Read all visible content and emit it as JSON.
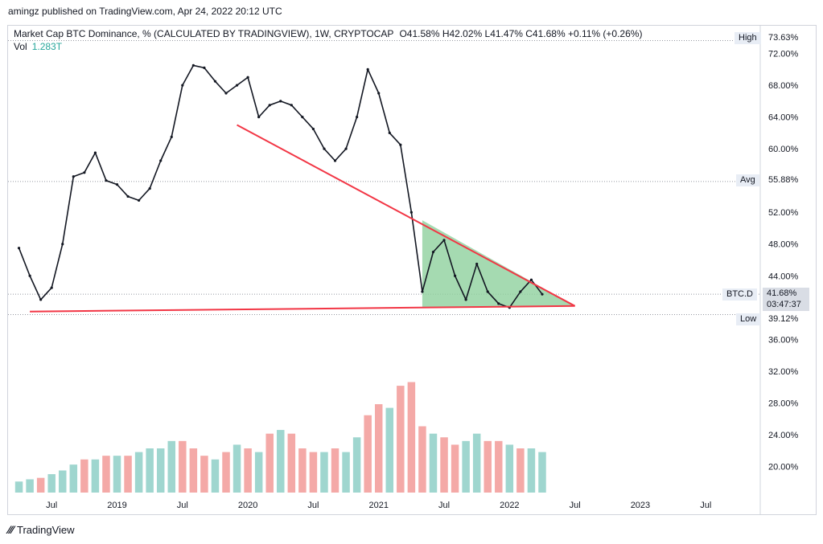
{
  "header": {
    "publisher": "amingz published on TradingView.com, Apr 24, 2022 20:12 UTC"
  },
  "legend": {
    "title": "Market Cap BTC Dominance, % (CALCULATED BY TRADINGVIEW), 1W, CRYPTOCAP",
    "ohlc": "O41.58%  H42.02%  L41.47%  C41.68%  +0.11% (+0.26%)",
    "vol_label": "Vol",
    "vol_value": "1.283T"
  },
  "markers": {
    "high_label": "High",
    "high_value": "73.63%",
    "avg_label": "Avg",
    "avg_value": "55.88%",
    "low_label": "Low",
    "low_value": "39.12%",
    "symbol": "BTC.D",
    "last_value": "41.68%",
    "countdown": "03:47:37"
  },
  "footer": {
    "brand": "TradingView"
  },
  "colors": {
    "up": "#26a69a",
    "down": "#ef5350",
    "trend": "#f23645",
    "triangle_fill": "#8fd19e",
    "candle": "#131722"
  },
  "chart_data": {
    "type": "line",
    "title": "Market Cap BTC Dominance, % (CALCULATED BY TRADINGVIEW), 1W, CRYPTOCAP",
    "ylabel": "%",
    "ylim": [
      16.5,
      75.5
    ],
    "y_ticks": [
      "72.00%",
      "68.00%",
      "64.00%",
      "60.00%",
      "52.00%",
      "48.00%",
      "44.00%",
      "36.00%",
      "32.00%",
      "28.00%",
      "24.00%",
      "20.00%"
    ],
    "x_ticks": [
      "Jul",
      "2019",
      "Jul",
      "2020",
      "Jul",
      "2021",
      "Jul",
      "2022",
      "Jul",
      "2023",
      "Jul"
    ],
    "series": [
      {
        "name": "BTC.D",
        "x": [
          "2018-04",
          "2018-05",
          "2018-06",
          "2018-07",
          "2018-08",
          "2018-09",
          "2018-10",
          "2018-11",
          "2018-12",
          "2019-01",
          "2019-02",
          "2019-03",
          "2019-04",
          "2019-05",
          "2019-06",
          "2019-07",
          "2019-08",
          "2019-09",
          "2019-10",
          "2019-11",
          "2019-12",
          "2020-01",
          "2020-02",
          "2020-03",
          "2020-04",
          "2020-05",
          "2020-06",
          "2020-07",
          "2020-08",
          "2020-09",
          "2020-10",
          "2020-11",
          "2020-12",
          "2021-01",
          "2021-02",
          "2021-03",
          "2021-04",
          "2021-05",
          "2021-06",
          "2021-07",
          "2021-08",
          "2021-09",
          "2021-10",
          "2021-11",
          "2021-12",
          "2022-01",
          "2022-02",
          "2022-03",
          "2022-04"
        ],
        "values": [
          47.5,
          44.0,
          41.0,
          42.5,
          48.0,
          56.5,
          57.0,
          59.5,
          56.0,
          55.5,
          54.0,
          53.5,
          55.0,
          58.5,
          61.5,
          68.0,
          70.5,
          70.2,
          68.5,
          67.0,
          68.0,
          69.0,
          64.0,
          65.5,
          66.0,
          65.5,
          64.0,
          62.5,
          60.0,
          58.5,
          60.0,
          64.0,
          70.0,
          67.0,
          62.0,
          60.5,
          52.0,
          42.0,
          47.0,
          48.5,
          44.0,
          41.0,
          45.5,
          42.0,
          40.5,
          40.0,
          42.0,
          43.5,
          41.68
        ]
      }
    ],
    "volume_ylim": [
      16,
      34
    ],
    "volume": [
      17.5,
      17.8,
      18.0,
      18.5,
      19.0,
      19.8,
      20.5,
      20.5,
      21.0,
      21.0,
      21.0,
      21.5,
      22.0,
      22.0,
      23.0,
      23.0,
      22.0,
      21.0,
      20.5,
      21.5,
      22.5,
      22.0,
      21.5,
      24.0,
      24.5,
      24.0,
      22.0,
      21.5,
      21.5,
      22.0,
      21.5,
      23.5,
      26.5,
      28.0,
      27.5,
      30.5,
      31.0,
      25.0,
      24.0,
      23.5,
      22.5,
      23.0,
      24.0,
      23.0,
      23.0,
      22.5,
      22.0,
      22.0,
      21.5
    ],
    "volume_up": [
      true,
      true,
      false,
      true,
      true,
      true,
      false,
      true,
      false,
      true,
      false,
      true,
      true,
      true,
      true,
      false,
      false,
      false,
      true,
      false,
      true,
      false,
      true,
      false,
      true,
      false,
      false,
      false,
      true,
      false,
      true,
      true,
      false,
      false,
      true,
      false,
      false,
      false,
      true,
      false,
      false,
      true,
      true,
      false,
      false,
      true,
      false,
      true,
      true
    ],
    "trendlines": [
      {
        "from": [
          "2019-12",
          63.0
        ],
        "to": [
          "2022-07",
          40.2
        ]
      },
      {
        "from": [
          "2018-05",
          39.5
        ],
        "to": [
          "2022-07",
          40.2
        ]
      }
    ],
    "triangle": [
      [
        "2021-05",
        51.0
      ],
      [
        "2022-07",
        40.2
      ],
      [
        "2021-05",
        40.0
      ]
    ],
    "grid": false,
    "legend_position": "top-left"
  }
}
